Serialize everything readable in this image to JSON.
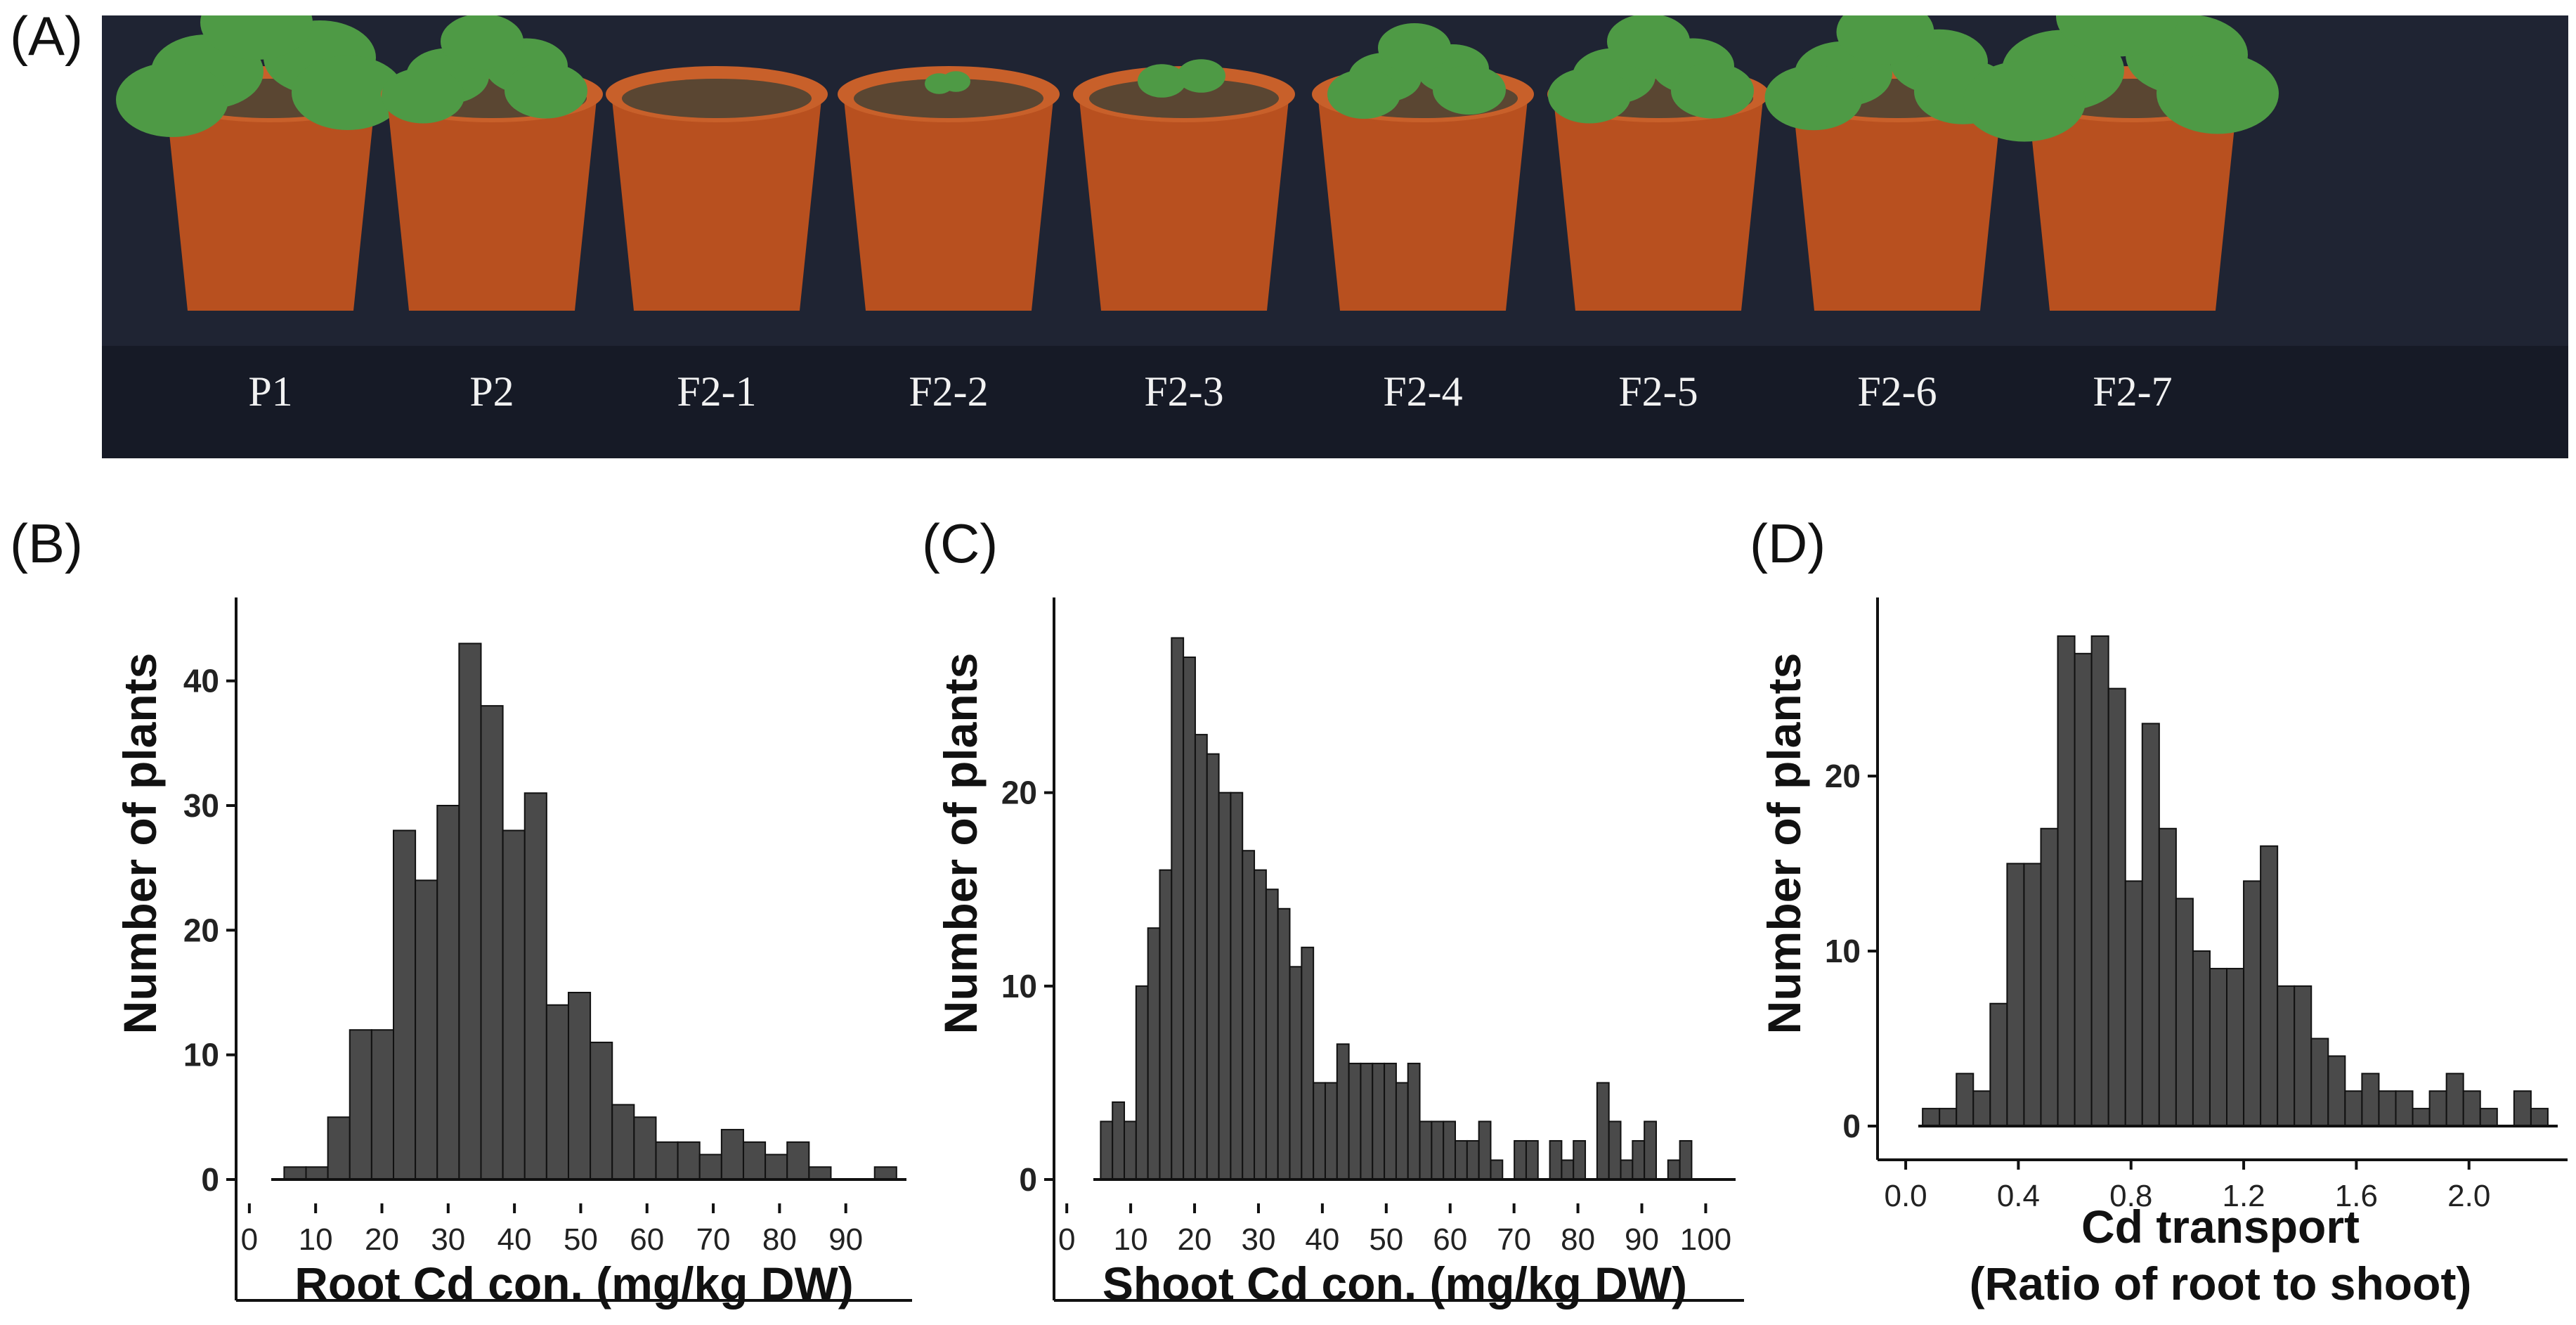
{
  "panels": {
    "a": "(A)",
    "b": "(B)",
    "c": "(C)",
    "d": "(D)"
  },
  "photo": {
    "pot_labels": [
      "P1",
      "P2",
      "F2-1",
      "F2-2",
      "F2-3",
      "F2-4",
      "F2-5",
      "F2-6",
      "F2-7"
    ],
    "colors": {
      "background": "#1f2433",
      "pot": "#b8501f",
      "soil": "#5a4632",
      "leaf": "#4e9a45"
    }
  },
  "chart_data": [
    {
      "type": "bar",
      "panel": "(B)",
      "xlabel": "Root Cd con. (mg/kg DW)",
      "ylabel": "Number of plants",
      "xlim": [
        -2,
        100
      ],
      "ylim": [
        0,
        45
      ],
      "xticks": [
        0,
        10,
        20,
        30,
        40,
        50,
        60,
        70,
        80,
        90
      ],
      "yticks": [
        0,
        10,
        20,
        30,
        40
      ],
      "bin_width": 3.3,
      "bin_starts": [
        5.25,
        8.55,
        11.85,
        15.15,
        18.45,
        21.75,
        25.05,
        28.35,
        31.65,
        34.95,
        38.25,
        41.55,
        44.85,
        48.15,
        51.45,
        54.75,
        58.05,
        61.35,
        64.65,
        67.95,
        71.25,
        74.55,
        77.85,
        81.15,
        84.45,
        87.75,
        91.05,
        94.35
      ],
      "values": [
        1,
        1,
        5,
        12,
        12,
        28,
        24,
        30,
        43,
        38,
        28,
        31,
        14,
        15,
        11,
        6,
        5,
        3,
        3,
        2,
        4,
        3,
        2,
        3,
        1,
        0,
        0,
        1
      ],
      "bar_color": "#4a4a4a"
    },
    {
      "type": "bar",
      "panel": "(C)",
      "xlabel": "Shoot Cd con. (mg/kg DW)",
      "ylabel": "Number of plants",
      "xlim": [
        -2,
        106
      ],
      "ylim": [
        0,
        29
      ],
      "xticks": [
        0,
        10,
        20,
        30,
        40,
        50,
        60,
        70,
        80,
        90,
        100
      ],
      "yticks": [
        0,
        10,
        20
      ],
      "bin_width": 1.85,
      "bin_starts": [
        5.3,
        7.15,
        9.0,
        10.85,
        12.7,
        14.55,
        16.4,
        18.25,
        20.1,
        21.95,
        23.8,
        25.65,
        27.5,
        29.35,
        31.2,
        33.05,
        34.9,
        36.75,
        38.6,
        40.45,
        42.3,
        44.15,
        46.0,
        47.85,
        49.7,
        51.55,
        53.4,
        55.25,
        57.1,
        58.95,
        60.8,
        62.65,
        64.5,
        66.35,
        68.2,
        70.05,
        71.9,
        73.75,
        75.6,
        77.45,
        79.3,
        81.15,
        83.0,
        84.85,
        86.7,
        88.55,
        90.4,
        92.25,
        94.1,
        95.95,
        97.8,
        99.65
      ],
      "values": [
        3,
        4,
        3,
        10,
        13,
        16,
        28,
        27,
        23,
        22,
        20,
        20,
        17,
        16,
        15,
        14,
        11,
        12,
        5,
        5,
        7,
        6,
        6,
        6,
        6,
        5,
        6,
        3,
        3,
        3,
        2,
        2,
        3,
        1,
        0,
        2,
        2,
        0,
        2,
        1,
        2,
        0,
        5,
        3,
        1,
        2,
        3,
        0,
        1,
        2,
        0,
        0
      ],
      "bar_color": "#4a4a4a"
    },
    {
      "type": "bar",
      "panel": "(D)",
      "xlabel": "Cd transport",
      "xlabel2": "(Ratio of root to shoot)",
      "ylabel": "Number of plants",
      "xlim": [
        -0.1,
        2.35
      ],
      "ylim": [
        0,
        29
      ],
      "xticks": [
        "0.0",
        "0.4",
        "0.8",
        "1.2",
        "1.6",
        "2.0"
      ],
      "yticks": [
        0,
        10,
        20
      ],
      "bin_width": 0.06,
      "bin_starts": [
        0.06,
        0.12,
        0.18,
        0.24,
        0.3,
        0.36,
        0.42,
        0.48,
        0.54,
        0.6,
        0.66,
        0.72,
        0.78,
        0.84,
        0.9,
        0.96,
        1.02,
        1.08,
        1.14,
        1.2,
        1.26,
        1.32,
        1.38,
        1.44,
        1.5,
        1.56,
        1.62,
        1.68,
        1.74,
        1.8,
        1.86,
        1.92,
        1.98,
        2.04,
        2.1,
        2.16,
        2.22
      ],
      "values": [
        1,
        1,
        3,
        2,
        7,
        15,
        15,
        17,
        28,
        27,
        28,
        25,
        14,
        23,
        17,
        13,
        10,
        9,
        9,
        14,
        16,
        8,
        8,
        5,
        4,
        2,
        3,
        2,
        2,
        1,
        2,
        3,
        2,
        1,
        0,
        2,
        1
      ],
      "bar_color": "#4a4a4a"
    }
  ]
}
